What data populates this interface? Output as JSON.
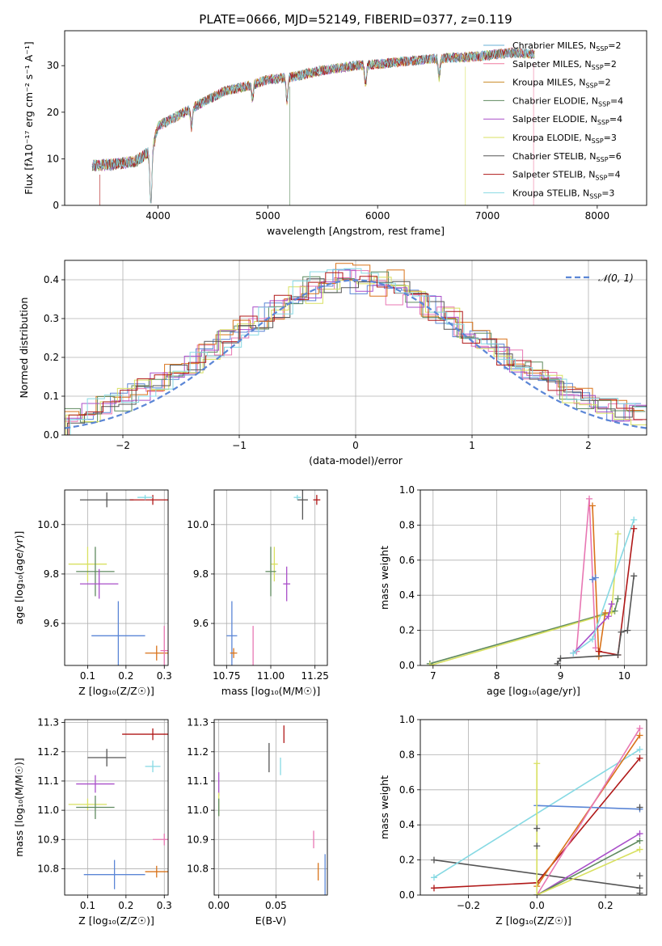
{
  "title": "PLATE=0666, MJD=52149, FIBERID=0377, z=0.119",
  "colors": {
    "c_MILES": "#6ab0d6",
    "s_MILES": "#ef7ba0",
    "k_MILES": "#c98a22",
    "c_ELODIE": "#5f8a5f",
    "s_ELODIE": "#a94fc9",
    "k_ELODIE": "#d8e060",
    "c_STELIB": "#555555",
    "s_STELIB": "#b01818",
    "k_STELIB": "#86d9e3",
    "blue": "#5b86d6",
    "pink": "#e877b3",
    "orange": "#d9731a",
    "normal": "#5b86d6"
  },
  "chart_data": [
    {
      "id": "spectrum",
      "type": "line",
      "xlabel": "wavelength [Angstrom, rest frame]",
      "ylabel": "Flux [fλ10⁻¹⁷ erg cm⁻² s⁻¹ A⁻¹]",
      "xlim": [
        3150,
        8450
      ],
      "ylim": [
        0,
        37.5
      ],
      "xticks": [
        4000,
        5000,
        6000,
        7000,
        8000
      ],
      "yticks": [
        0,
        10,
        20,
        30
      ],
      "legend_position": "right",
      "legend": [
        {
          "key": "c_MILES",
          "label": "Chrabrier MILES, N",
          "sub": "SSP",
          "suffix": "=2"
        },
        {
          "key": "s_MILES",
          "label": "Salpeter MILES, N",
          "sub": "SSP",
          "suffix": "=2"
        },
        {
          "key": "k_MILES",
          "label": "Kroupa MILES, N",
          "sub": "SSP",
          "suffix": "=2"
        },
        {
          "key": "c_ELODIE",
          "label": "Chabrier ELODIE, N",
          "sub": "SSP",
          "suffix": "=4"
        },
        {
          "key": "s_ELODIE",
          "label": "Salpeter ELODIE, N",
          "sub": "SSP",
          "suffix": "=4"
        },
        {
          "key": "k_ELODIE",
          "label": "Kroupa ELODIE, N",
          "sub": "SSP",
          "suffix": "=3"
        },
        {
          "key": "c_STELIB",
          "label": "Chabrier STELIB, N",
          "sub": "SSP",
          "suffix": "=6"
        },
        {
          "key": "s_STELIB",
          "label": "Salpeter STELIB, N",
          "sub": "SSP",
          "suffix": "=4"
        },
        {
          "key": "k_STELIB",
          "label": "Kroupa STELIB, N",
          "sub": "SSP",
          "suffix": "=3"
        }
      ],
      "continuum": [
        [
          3400,
          8.5
        ],
        [
          3600,
          8.8
        ],
        [
          3800,
          9.5
        ],
        [
          3950,
          12
        ],
        [
          4000,
          17
        ],
        [
          4200,
          19.5
        ],
        [
          4400,
          22
        ],
        [
          4600,
          24.5
        ],
        [
          4800,
          25.5
        ],
        [
          5000,
          27
        ],
        [
          5200,
          27.5
        ],
        [
          5500,
          29
        ],
        [
          5800,
          30
        ],
        [
          6000,
          30.3
        ],
        [
          6200,
          30.8
        ],
        [
          6500,
          31.5
        ],
        [
          6800,
          31.8
        ],
        [
          7000,
          32.2
        ],
        [
          7200,
          32.8
        ],
        [
          7400,
          32.5
        ]
      ],
      "dips": [
        [
          3935,
          13
        ],
        [
          4305,
          4
        ],
        [
          4860,
          3
        ],
        [
          5175,
          5
        ],
        [
          5890,
          4
        ],
        [
          6560,
          4
        ]
      ],
      "drops": [
        {
          "key": "s_STELIB",
          "x": 3470
        },
        {
          "key": "k_ELODIE",
          "x": 3920
        },
        {
          "key": "c_ELODIE",
          "x": 5200
        },
        {
          "key": "k_ELODIE",
          "x": 6800
        },
        {
          "key": "s_MILES",
          "x": 7420
        }
      ]
    },
    {
      "id": "residuals",
      "type": "step",
      "xlabel": "(data-model)/error",
      "ylabel": "Normed distribution",
      "xlim": [
        -2.5,
        2.5
      ],
      "ylim": [
        0,
        0.45
      ],
      "xticks": [
        -2,
        -1,
        0,
        1,
        2
      ],
      "yticks": [
        0.0,
        0.1,
        0.2,
        0.3,
        0.4
      ],
      "legend_position": "upper right",
      "reference_label": "𝒩(0, 1)",
      "series_keys": [
        "blue",
        "pink",
        "orange",
        "c_ELODIE",
        "s_ELODIE",
        "k_ELODIE",
        "c_STELIB",
        "s_STELIB",
        "k_STELIB"
      ]
    },
    {
      "id": "age_vs_Z",
      "type": "scatter",
      "xlabel": "Z [log₁₀(Z/Z☉)]",
      "ylabel": "age  [log₁₀(age/yr)]",
      "xlim": [
        0.04,
        0.31
      ],
      "ylim": [
        9.43,
        10.14
      ],
      "xticks": [
        0.1,
        0.2,
        0.3
      ],
      "yticks": [
        9.6,
        9.8,
        10.0
      ],
      "points": [
        {
          "key": "c_STELIB",
          "x": 0.15,
          "y": 10.1,
          "xe": 0.07,
          "ye": 0.03
        },
        {
          "key": "s_STELIB",
          "x": 0.27,
          "y": 10.1,
          "xe": 0.06,
          "ye": 0.02
        },
        {
          "key": "k_STELIB",
          "x": 0.25,
          "y": 10.11,
          "xe": 0.02,
          "ye": 0.01
        },
        {
          "key": "k_ELODIE",
          "x": 0.1,
          "y": 9.84,
          "xe": 0.05,
          "ye": 0.07
        },
        {
          "key": "c_ELODIE",
          "x": 0.12,
          "y": 9.81,
          "xe": 0.05,
          "ye": 0.1
        },
        {
          "key": "s_ELODIE",
          "x": 0.13,
          "y": 9.76,
          "xe": 0.05,
          "ye": 0.06
        },
        {
          "key": "blue",
          "x": 0.18,
          "y": 9.55,
          "xe": 0.07,
          "ye": 0.14
        },
        {
          "key": "orange",
          "x": 0.28,
          "y": 9.48,
          "xe": 0.03,
          "ye": 0.03
        },
        {
          "key": "pink",
          "x": 0.3,
          "y": 9.49,
          "xe": 0.01,
          "ye": 0.1
        }
      ]
    },
    {
      "id": "age_vs_mass",
      "type": "scatter",
      "xlabel": "mass [log₁₀(M/M☉)]",
      "ylabel": "",
      "xlim": [
        10.68,
        11.32
      ],
      "ylim": [
        9.43,
        10.14
      ],
      "xticks": [
        10.75,
        11.0,
        11.25
      ],
      "yticks": [
        9.6,
        9.8,
        10.0
      ],
      "points": [
        {
          "key": "c_STELIB",
          "x": 11.18,
          "y": 10.1,
          "xe": 0.03,
          "ye": 0.08
        },
        {
          "key": "s_STELIB",
          "x": 11.26,
          "y": 10.1,
          "xe": 0.02,
          "ye": 0.02
        },
        {
          "key": "k_STELIB",
          "x": 11.15,
          "y": 10.11,
          "xe": 0.02,
          "ye": 0.01
        },
        {
          "key": "k_ELODIE",
          "x": 11.02,
          "y": 9.84,
          "xe": 0.02,
          "ye": 0.07
        },
        {
          "key": "c_ELODIE",
          "x": 11.0,
          "y": 9.81,
          "xe": 0.03,
          "ye": 0.1
        },
        {
          "key": "s_ELODIE",
          "x": 11.09,
          "y": 9.76,
          "xe": 0.02,
          "ye": 0.07
        },
        {
          "key": "blue",
          "x": 10.78,
          "y": 9.55,
          "xe": 0.03,
          "ye": 0.14
        },
        {
          "key": "orange",
          "x": 10.79,
          "y": 9.48,
          "xe": 0.02,
          "ye": 0.02
        },
        {
          "key": "pink",
          "x": 10.9,
          "y": 9.49,
          "xe": 0.001,
          "ye": 0.1
        }
      ]
    },
    {
      "id": "weight_vs_age",
      "type": "line",
      "xlabel": "age  [log₁₀(age/yr)]",
      "ylabel": "mass weight",
      "xlim": [
        6.8,
        10.35
      ],
      "ylim": [
        0,
        1.0
      ],
      "xticks": [
        7,
        8,
        9,
        10
      ],
      "yticks": [
        0.0,
        0.2,
        0.4,
        0.6,
        0.8,
        1.0
      ],
      "series": [
        {
          "key": "c_ELODIE",
          "points": [
            [
              6.95,
              0.01
            ],
            [
              9.85,
              0.31
            ],
            [
              9.9,
              0.38
            ]
          ]
        },
        {
          "key": "k_ELODIE",
          "points": [
            [
              6.95,
              0.0
            ],
            [
              9.8,
              0.3
            ],
            [
              9.9,
              0.75
            ]
          ]
        },
        {
          "key": "pink",
          "points": [
            [
              9.25,
              0.08
            ],
            [
              9.45,
              0.95
            ],
            [
              9.55,
              0.1
            ]
          ]
        },
        {
          "key": "orange",
          "points": [
            [
              9.5,
              0.91
            ],
            [
              9.6,
              0.05
            ],
            [
              9.7,
              0.3
            ]
          ]
        },
        {
          "key": "blue",
          "points": [
            [
              9.5,
              0.49
            ],
            [
              9.55,
              0.5
            ]
          ]
        },
        {
          "key": "s_ELODIE",
          "points": [
            [
              9.2,
              0.07
            ],
            [
              9.75,
              0.28
            ],
            [
              9.8,
              0.35
            ]
          ]
        },
        {
          "key": "k_STELIB",
          "points": [
            [
              9.2,
              0.07
            ],
            [
              9.5,
              0.15
            ],
            [
              10.15,
              0.83
            ]
          ]
        },
        {
          "key": "s_STELIB",
          "points": [
            [
              9.6,
              0.08
            ],
            [
              9.9,
              0.06
            ],
            [
              10.15,
              0.78
            ]
          ]
        },
        {
          "key": "c_STELIB",
          "points": [
            [
              8.95,
              0.01
            ],
            [
              9.0,
              0.04
            ],
            [
              9.9,
              0.06
            ],
            [
              9.95,
              0.19
            ],
            [
              10.05,
              0.2
            ],
            [
              10.15,
              0.51
            ]
          ]
        }
      ]
    },
    {
      "id": "mass_vs_Z",
      "type": "scatter",
      "xlabel": "Z [log₁₀(Z/Z☉)]",
      "ylabel": "mass [log₁₀(M/M☉)]",
      "xlim": [
        0.04,
        0.31
      ],
      "ylim": [
        10.71,
        11.31
      ],
      "xticks": [
        0.1,
        0.2,
        0.3
      ],
      "yticks": [
        10.8,
        10.9,
        11.0,
        11.1,
        11.2,
        11.3
      ],
      "points": [
        {
          "key": "s_STELIB",
          "x": 0.27,
          "y": 11.26,
          "xe": 0.08,
          "ye": 0.02
        },
        {
          "key": "c_STELIB",
          "x": 0.15,
          "y": 11.18,
          "xe": 0.05,
          "ye": 0.03
        },
        {
          "key": "k_STELIB",
          "x": 0.27,
          "y": 11.15,
          "xe": 0.02,
          "ye": 0.02
        },
        {
          "key": "s_ELODIE",
          "x": 0.12,
          "y": 11.09,
          "xe": 0.05,
          "ye": 0.03
        },
        {
          "key": "k_ELODIE",
          "x": 0.1,
          "y": 11.02,
          "xe": 0.05,
          "ye": 0.02
        },
        {
          "key": "c_ELODIE",
          "x": 0.12,
          "y": 11.01,
          "xe": 0.05,
          "ye": 0.04
        },
        {
          "key": "pink",
          "x": 0.3,
          "y": 10.9,
          "xe": 0.03,
          "ye": 0.02
        },
        {
          "key": "blue",
          "x": 0.17,
          "y": 10.78,
          "xe": 0.08,
          "ye": 0.05
        },
        {
          "key": "orange",
          "x": 0.28,
          "y": 10.79,
          "xe": 0.03,
          "ye": 0.02
        }
      ]
    },
    {
      "id": "mass_vs_ebv",
      "type": "scatter",
      "xlabel": "E(B-V)",
      "ylabel": "",
      "xlim": [
        -0.004,
        0.095
      ],
      "ylim": [
        10.71,
        11.31
      ],
      "xticks": [
        0.0,
        0.05
      ],
      "yticks": [
        10.8,
        10.9,
        11.0,
        11.1,
        11.2,
        11.3
      ],
      "points": [
        {
          "key": "s_STELIB",
          "x": 0.057,
          "y": 11.26,
          "xe": 0,
          "ye": 0.03
        },
        {
          "key": "c_STELIB",
          "x": 0.044,
          "y": 11.18,
          "xe": 0,
          "ye": 0.05
        },
        {
          "key": "k_STELIB",
          "x": 0.054,
          "y": 11.15,
          "xe": 0,
          "ye": 0.03
        },
        {
          "key": "s_ELODIE",
          "x": 0.0,
          "y": 11.09,
          "xe": 0,
          "ye": 0.04
        },
        {
          "key": "k_ELODIE",
          "x": 0.0,
          "y": 11.02,
          "xe": 0,
          "ye": 0.04
        },
        {
          "key": "c_ELODIE",
          "x": 0.0,
          "y": 11.01,
          "xe": 0,
          "ye": 0.03
        },
        {
          "key": "pink",
          "x": 0.083,
          "y": 10.9,
          "xe": 0,
          "ye": 0.03
        },
        {
          "key": "blue",
          "x": 0.093,
          "y": 10.78,
          "xe": 0,
          "ye": 0.07
        },
        {
          "key": "orange",
          "x": 0.087,
          "y": 10.79,
          "xe": 0,
          "ye": 0.03
        }
      ]
    },
    {
      "id": "weight_vs_Z",
      "type": "line",
      "xlabel": "Z [log₁₀(Z/Z☉)]",
      "ylabel": "mass weight",
      "xlim": [
        -0.34,
        0.32
      ],
      "ylim": [
        0,
        1.0
      ],
      "xticks": [
        -0.2,
        0.0,
        0.2
      ],
      "yticks": [
        0.0,
        0.2,
        0.4,
        0.6,
        0.8,
        1.0
      ],
      "series": [
        {
          "key": "c_STELIB",
          "points": [
            [
              -0.3,
              0.2
            ],
            [
              0.3,
              0.04
            ]
          ]
        },
        {
          "key": "k_STELIB",
          "points": [
            [
              -0.3,
              0.1
            ],
            [
              0.3,
              0.83
            ]
          ]
        },
        {
          "key": "s_STELIB",
          "points": [
            [
              -0.3,
              0.04
            ],
            [
              0.0,
              0.07
            ],
            [
              0.3,
              0.78
            ]
          ]
        },
        {
          "key": "blue",
          "points": [
            [
              0.0,
              0.51
            ],
            [
              0.3,
              0.49
            ]
          ]
        },
        {
          "key": "orange",
          "points": [
            [
              0.0,
              0.05
            ],
            [
              0.3,
              0.91
            ]
          ]
        },
        {
          "key": "pink",
          "points": [
            [
              0.0,
              0.0
            ],
            [
              0.3,
              0.95
            ]
          ]
        },
        {
          "key": "s_ELODIE",
          "points": [
            [
              0.0,
              0.0
            ],
            [
              0.3,
              0.35
            ]
          ]
        },
        {
          "key": "c_ELODIE",
          "points": [
            [
              0.0,
              0.0
            ],
            [
              0.3,
              0.31
            ]
          ]
        },
        {
          "key": "k_ELODIE",
          "points": [
            [
              0.0,
              0.75
            ],
            [
              0.0,
              0.0
            ],
            [
              0.3,
              0.26
            ]
          ]
        }
      ],
      "markers": [
        {
          "key": "c_STELIB",
          "x": 0.0,
          "y": 0.38
        },
        {
          "key": "c_STELIB",
          "x": 0.0,
          "y": 0.28
        },
        {
          "key": "c_STELIB",
          "x": 0.3,
          "y": 0.5
        },
        {
          "key": "c_STELIB",
          "x": 0.3,
          "y": 0.11
        },
        {
          "key": "c_STELIB",
          "x": 0.3,
          "y": 0.01
        }
      ]
    }
  ]
}
